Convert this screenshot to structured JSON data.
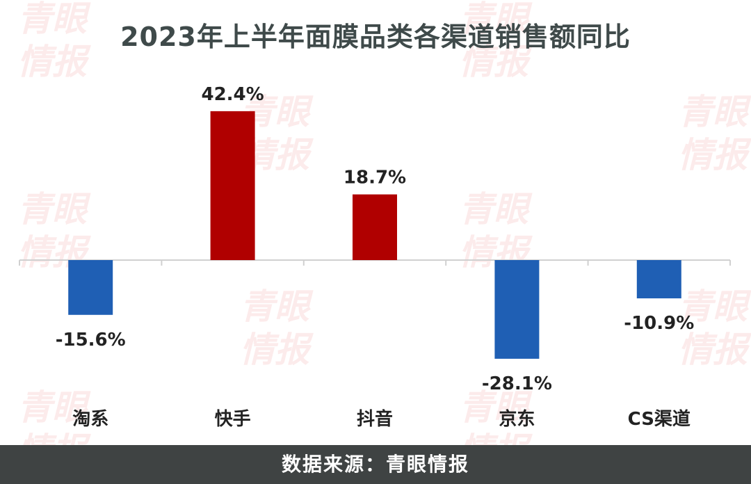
{
  "watermark": "青眼\n情报",
  "footer": {
    "source": "数据来源：青眼情报"
  },
  "colors": {
    "positive": "#b00000",
    "negative": "#1f5fb4",
    "axis": "#d0d0d0",
    "text": "#222222"
  },
  "chart_data": {
    "type": "bar",
    "title": "2023年上半年面膜品类各渠道销售额同比",
    "xlabel": "",
    "ylabel": "",
    "categories": [
      "淘系",
      "快手",
      "抖音",
      "京东",
      "CS渠道"
    ],
    "values": [
      -15.6,
      42.4,
      18.7,
      -28.1,
      -10.9
    ],
    "data_labels": [
      "-15.6%",
      "42.4%",
      "18.7%",
      "-28.1%",
      "-10.9%"
    ],
    "unit": "%",
    "ylim": [
      -30,
      45
    ],
    "grid": false,
    "legend": "none"
  }
}
